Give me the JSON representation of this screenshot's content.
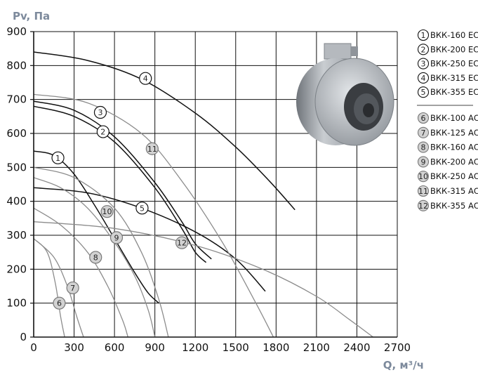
{
  "chart_data": {
    "type": "line",
    "ylabel": "Pv, Па",
    "xlabel": "Q, м³/ч",
    "xlim": [
      0,
      2700
    ],
    "ylim": [
      0,
      900
    ],
    "x_ticks": [
      "0",
      "300",
      "600",
      "900",
      "1200",
      "1500",
      "1800",
      "2100",
      "2400",
      "2700"
    ],
    "y_ticks": [
      "0",
      "100",
      "200",
      "300",
      "400",
      "500",
      "600",
      "700",
      "800",
      "900"
    ],
    "grid": true,
    "legend_position": "right",
    "image": "fan-photo",
    "colors": {
      "ec": "#111111",
      "ac": "#8c8c8c"
    },
    "series": [
      {
        "marker": "1",
        "name": "ВКК-160 ЕС",
        "group": "ec",
        "label_at": [
          180,
          528
        ],
        "points": [
          [
            0,
            548
          ],
          [
            150,
            535
          ],
          [
            300,
            480
          ],
          [
            450,
            390
          ],
          [
            600,
            290
          ],
          [
            750,
            190
          ],
          [
            850,
            130
          ],
          [
            930,
            100
          ]
        ]
      },
      {
        "marker": "2",
        "name": "ВКК-200 ЕС",
        "group": "ec",
        "label_at": [
          515,
          605
        ],
        "points": [
          [
            0,
            680
          ],
          [
            300,
            650
          ],
          [
            600,
            575
          ],
          [
            900,
            440
          ],
          [
            1100,
            320
          ],
          [
            1200,
            250
          ],
          [
            1280,
            220
          ]
        ]
      },
      {
        "marker": "3",
        "name": "ВКК-250 ЕС",
        "group": "ec",
        "label_at": [
          495,
          662
        ],
        "points": [
          [
            0,
            695
          ],
          [
            300,
            668
          ],
          [
            600,
            590
          ],
          [
            900,
            455
          ],
          [
            1100,
            340
          ],
          [
            1200,
            275
          ],
          [
            1320,
            230
          ]
        ]
      },
      {
        "marker": "4",
        "name": "ВКК-315 ЕС",
        "group": "ec",
        "label_at": [
          830,
          762
        ],
        "points": [
          [
            0,
            840
          ],
          [
            400,
            815
          ],
          [
            800,
            760
          ],
          [
            1200,
            660
          ],
          [
            1500,
            560
          ],
          [
            1750,
            460
          ],
          [
            1940,
            375
          ]
        ]
      },
      {
        "marker": "5",
        "name": "ВКК-355 ЕС",
        "group": "ec",
        "label_at": [
          805,
          380
        ],
        "points": [
          [
            0,
            440
          ],
          [
            400,
            425
          ],
          [
            800,
            380
          ],
          [
            1200,
            310
          ],
          [
            1500,
            230
          ],
          [
            1720,
            135
          ]
        ]
      },
      {
        "marker": "6",
        "name": "ВКК-100 АС",
        "group": "ac",
        "label_at": [
          190,
          100
        ],
        "points": [
          [
            0,
            290
          ],
          [
            100,
            250
          ],
          [
            160,
            160
          ],
          [
            200,
            60
          ],
          [
            230,
            0
          ]
        ]
      },
      {
        "marker": "7",
        "name": "ВКК-125 АС",
        "group": "ac",
        "label_at": [
          290,
          145
        ],
        "points": [
          [
            0,
            290
          ],
          [
            150,
            235
          ],
          [
            250,
            150
          ],
          [
            320,
            60
          ],
          [
            370,
            0
          ]
        ]
      },
      {
        "marker": "8",
        "name": "ВКК-160 АС",
        "group": "ac",
        "label_at": [
          460,
          235
        ],
        "points": [
          [
            0,
            380
          ],
          [
            200,
            330
          ],
          [
            400,
            250
          ],
          [
            550,
            150
          ],
          [
            660,
            50
          ],
          [
            700,
            0
          ]
        ]
      },
      {
        "marker": "9",
        "name": "ВКК-200 АС",
        "group": "ac",
        "label_at": [
          615,
          293
        ],
        "points": [
          [
            0,
            470
          ],
          [
            200,
            440
          ],
          [
            400,
            380
          ],
          [
            600,
            280
          ],
          [
            750,
            180
          ],
          [
            850,
            80
          ],
          [
            900,
            0
          ]
        ]
      },
      {
        "marker": "10",
        "name": "ВКК-250 АС",
        "group": "ac",
        "label_at": [
          545,
          370
        ],
        "points": [
          [
            0,
            500
          ],
          [
            300,
            470
          ],
          [
            600,
            380
          ],
          [
            800,
            250
          ],
          [
            930,
            110
          ],
          [
            1000,
            0
          ]
        ]
      },
      {
        "marker": "11",
        "name": "ВКК-315 АС",
        "group": "ac",
        "label_at": [
          880,
          555
        ],
        "points": [
          [
            0,
            715
          ],
          [
            400,
            690
          ],
          [
            800,
            600
          ],
          [
            1100,
            460
          ],
          [
            1400,
            280
          ],
          [
            1650,
            100
          ],
          [
            1780,
            0
          ]
        ]
      },
      {
        "marker": "12",
        "name": "ВКК-355 АС",
        "group": "ac",
        "label_at": [
          1100,
          278
        ],
        "points": [
          [
            0,
            340
          ],
          [
            600,
            320
          ],
          [
            1200,
            270
          ],
          [
            1700,
            200
          ],
          [
            2100,
            120
          ],
          [
            2350,
            50
          ],
          [
            2520,
            0
          ]
        ]
      }
    ]
  }
}
